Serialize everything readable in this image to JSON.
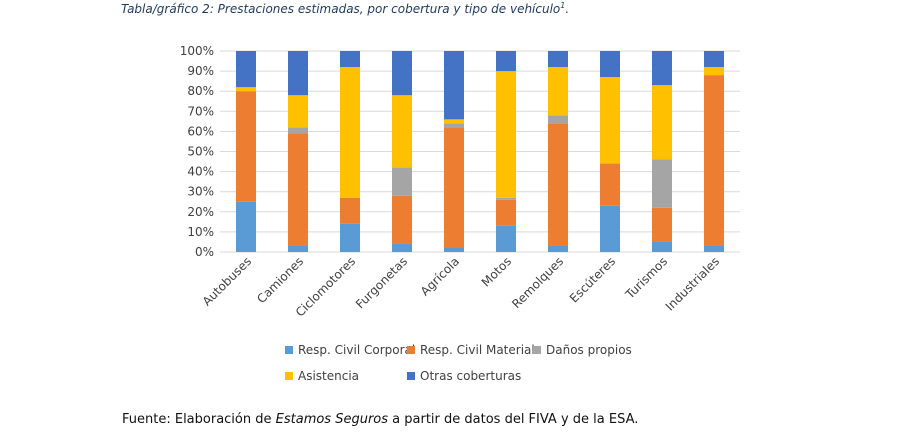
{
  "header": {
    "title": "Tabla/gráfico 2: Prestaciones estimadas, por cobertura y tipo de vehículo",
    "footnote_mark": "1"
  },
  "colors": {
    "Resp. Civil Corporal": "#5b9bd5",
    "Resp. Civil Material": "#ed7d31",
    "Daños propios": "#a5a5a5",
    "Asistencia": "#ffc000",
    "Otras coberturas": "#4472c4"
  },
  "chart_data": {
    "type": "bar",
    "stacked": true,
    "title": "",
    "xlabel": "",
    "ylabel": "",
    "ylim": [
      0,
      100
    ],
    "yticks": [
      "0%",
      "10%",
      "20%",
      "30%",
      "40%",
      "50%",
      "60%",
      "70%",
      "80%",
      "90%",
      "100%"
    ],
    "grid": true,
    "legend_position": "bottom",
    "categories": [
      "Autobuses",
      "Camiones",
      "Ciclomotores",
      "Furgonetas",
      "Agrícola",
      "Motos",
      "Remolques",
      "Escúteres",
      "Turismos",
      "Industriales"
    ],
    "series": [
      {
        "name": "Resp. Civil Corporal",
        "values": [
          25,
          3,
          14,
          4,
          2,
          13,
          3,
          23,
          5,
          3
        ]
      },
      {
        "name": "Resp. Civil Material",
        "values": [
          55,
          56,
          13,
          24,
          60,
          13,
          61,
          21,
          17,
          85
        ]
      },
      {
        "name": "Daños propios",
        "values": [
          0,
          3,
          0,
          14,
          2,
          1,
          4,
          0,
          24,
          0
        ]
      },
      {
        "name": "Asistencia",
        "values": [
          2,
          16,
          65,
          36,
          2,
          63,
          24,
          43,
          37,
          4
        ]
      },
      {
        "name": "Otras coberturas",
        "values": [
          18,
          22,
          8,
          22,
          34,
          10,
          8,
          13,
          17,
          8
        ]
      }
    ]
  },
  "source": {
    "prefix": "Fuente: Elaboración de ",
    "emphasis": "Estamos Seguros",
    "suffix": " a partir de datos del FIVA y de la ESA."
  }
}
